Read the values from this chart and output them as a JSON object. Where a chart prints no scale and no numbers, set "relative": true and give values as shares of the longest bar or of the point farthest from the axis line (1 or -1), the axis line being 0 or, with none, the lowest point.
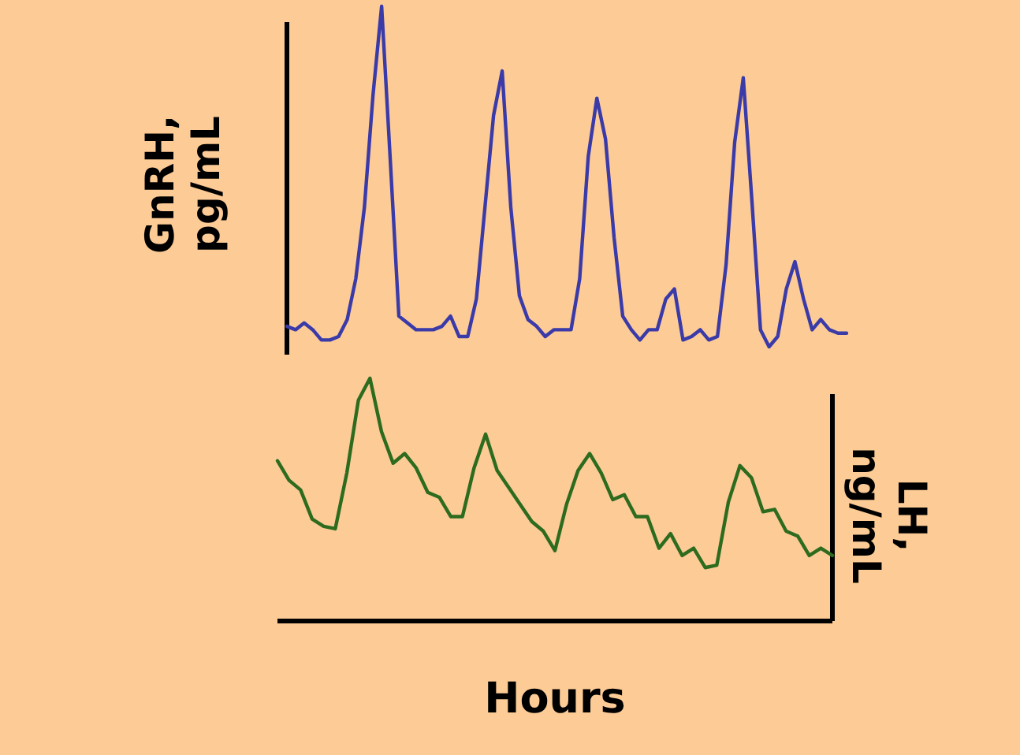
{
  "chart_data": [
    {
      "type": "line",
      "relative": true,
      "ylabel": "GnRH, pg/mL",
      "tick_labels": false,
      "marker": "none",
      "categories": [
        null,
        null,
        null,
        null,
        null,
        null,
        null,
        null,
        null,
        null,
        null,
        null,
        null,
        null,
        null,
        null,
        null,
        null,
        null,
        null,
        null,
        null,
        null,
        null,
        null,
        null,
        null,
        null,
        null,
        null,
        null,
        null,
        null,
        null,
        null,
        null,
        null,
        null,
        null,
        null,
        null,
        null,
        null,
        null,
        null,
        null,
        null,
        null,
        null,
        null,
        null,
        null,
        null,
        null,
        null,
        null,
        null,
        null,
        null,
        null,
        null,
        null,
        null,
        null,
        null,
        null
      ],
      "series": [
        {
          "color": "#3a3aa8",
          "values": [
            0.06,
            0.05,
            0.07,
            0.05,
            0.02,
            0.02,
            0.03,
            0.08,
            0.2,
            0.41,
            0.74,
            1,
            0.55,
            0.09,
            0.07,
            0.05,
            0.05,
            0.05,
            0.06,
            0.09,
            0.03,
            0.03,
            0.14,
            0.41,
            0.68,
            0.81,
            0.41,
            0.15,
            0.08,
            0.06,
            0.03,
            0.05,
            0.05,
            0.05,
            0.2,
            0.56,
            0.73,
            0.61,
            0.32,
            0.09,
            0.05,
            0.02,
            0.05,
            0.05,
            0.14,
            0.17,
            0.02,
            0.03,
            0.05,
            0.02,
            0.03,
            0.24,
            0.6,
            0.79,
            0.43,
            0.05,
            0,
            0.03,
            0.17,
            0.25,
            0.14,
            0.05,
            0.08,
            0.05,
            0.04,
            0.04
          ]
        }
      ]
    },
    {
      "type": "line",
      "relative": true,
      "xlabel": "Hours",
      "y2label": "LH, ng/mL",
      "tick_labels": false,
      "marker": "none",
      "categories": [
        null,
        null,
        null,
        null,
        null,
        null,
        null,
        null,
        null,
        null,
        null,
        null,
        null,
        null,
        null,
        null,
        null,
        null,
        null,
        null,
        null,
        null,
        null,
        null,
        null,
        null,
        null,
        null,
        null,
        null,
        null,
        null,
        null,
        null,
        null,
        null,
        null,
        null,
        null,
        null,
        null,
        null,
        null,
        null,
        null,
        null,
        null,
        null,
        null
      ],
      "series": [
        {
          "color": "#2d6b1e",
          "values": [
            0.66,
            0.58,
            0.54,
            0.42,
            0.39,
            0.38,
            0.61,
            0.91,
            1,
            0.78,
            0.65,
            0.69,
            0.63,
            0.53,
            0.51,
            0.43,
            0.43,
            0.63,
            0.77,
            0.62,
            0.55,
            0.48,
            0.41,
            0.37,
            0.29,
            0.48,
            0.62,
            0.69,
            0.61,
            0.5,
            0.52,
            0.43,
            0.43,
            0.3,
            0.36,
            0.27,
            0.3,
            0.22,
            0.23,
            0.49,
            0.64,
            0.59,
            0.45,
            0.46,
            0.37,
            0.35,
            0.27,
            0.3,
            0.27
          ]
        }
      ]
    }
  ]
}
